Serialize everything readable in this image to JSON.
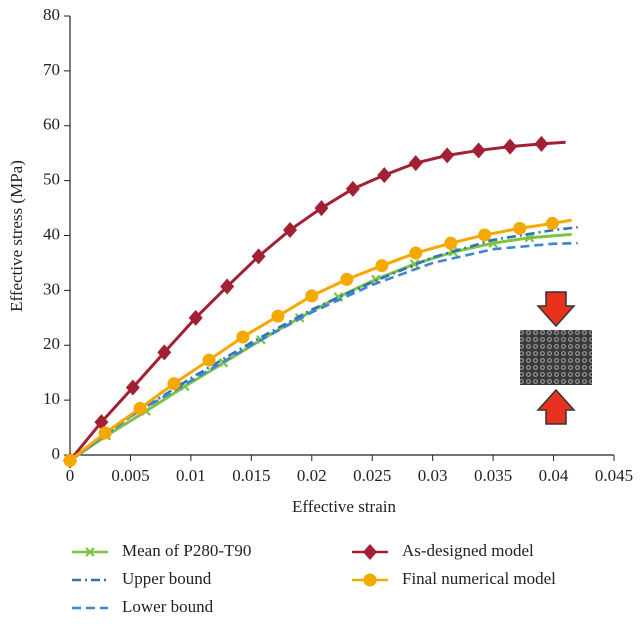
{
  "chart_data": {
    "type": "line",
    "xlabel": "Effective strain",
    "ylabel": "Effective stress (MPa)",
    "xlim": [
      0,
      0.045
    ],
    "xticks": [
      0,
      0.005,
      0.01,
      0.015,
      0.02,
      0.025,
      0.03,
      0.035,
      0.04,
      0.045
    ],
    "ylim": [
      0,
      80
    ],
    "yticks": [
      0,
      10,
      20,
      30,
      40,
      50,
      60,
      70,
      80
    ],
    "grid": false,
    "series": [
      {
        "name": "Mean of P280-T90",
        "color": "#7dc242",
        "marker": "x",
        "dash": "solid",
        "x": [
          0,
          0.003,
          0.0063,
          0.0095,
          0.0127,
          0.0158,
          0.019,
          0.0222,
          0.0253,
          0.0285,
          0.0317,
          0.035,
          0.038,
          0.0415
        ],
        "values": [
          -1,
          3.5,
          8,
          12.5,
          16.8,
          21,
          25,
          28.8,
          32,
          34.8,
          37,
          38.6,
          39.6,
          40.2
        ]
      },
      {
        "name": "Upper bound",
        "color": "#2e75b6",
        "dash": "dashdot",
        "x": [
          0,
          0.005,
          0.01,
          0.015,
          0.02,
          0.025,
          0.03,
          0.035,
          0.04,
          0.042
        ],
        "values": [
          -1,
          7,
          14,
          20.5,
          26.5,
          31.5,
          36,
          39.2,
          41,
          41.5
        ]
      },
      {
        "name": "Lower bound",
        "color": "#3f86d0",
        "dash": "dashed",
        "x": [
          0,
          0.005,
          0.01,
          0.015,
          0.02,
          0.025,
          0.03,
          0.035,
          0.04,
          0.042
        ],
        "values": [
          -1,
          7,
          13.5,
          20,
          26,
          31,
          35,
          37.5,
          38.5,
          38.6
        ]
      },
      {
        "name": "As-designed model",
        "color": "#a31f34",
        "marker": "diamond",
        "dash": "solid",
        "x": [
          0,
          0.0026,
          0.0052,
          0.0078,
          0.0104,
          0.013,
          0.0156,
          0.0182,
          0.0208,
          0.0234,
          0.026,
          0.0286,
          0.0312,
          0.0338,
          0.0364,
          0.039,
          0.041
        ],
        "values": [
          -1,
          6,
          12.3,
          18.7,
          25,
          30.7,
          36.2,
          41,
          45,
          48.5,
          51,
          53.2,
          54.6,
          55.5,
          56.2,
          56.7,
          57
        ]
      },
      {
        "name": "Final numerical model",
        "color": "#f5a800",
        "marker": "circle",
        "dash": "solid",
        "x": [
          0,
          0.0029,
          0.0058,
          0.0086,
          0.0115,
          0.0143,
          0.0172,
          0.02,
          0.0229,
          0.0258,
          0.0286,
          0.0315,
          0.0343,
          0.0372,
          0.0399,
          0.0415
        ],
        "values": [
          -1,
          4,
          8.5,
          13,
          17.3,
          21.5,
          25.3,
          29,
          32,
          34.5,
          36.8,
          38.6,
          40.1,
          41.3,
          42.2,
          42.8
        ]
      }
    ]
  }
}
